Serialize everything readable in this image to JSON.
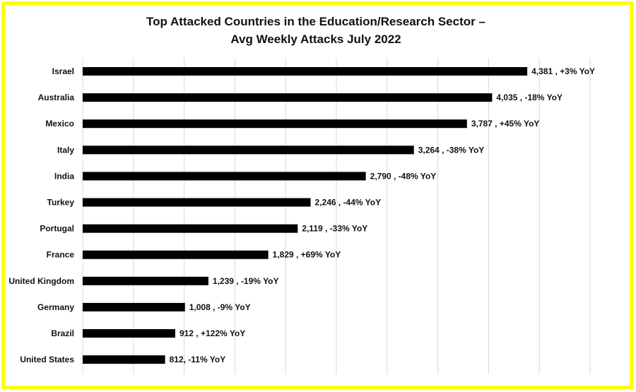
{
  "chart_data": {
    "type": "bar",
    "orientation": "horizontal",
    "title_line1": "Top Attacked Countries in the Education/Research Sector –",
    "title_line2": "Avg Weekly Attacks July 2022",
    "categories": [
      "Israel",
      "Australia",
      "Mexico",
      "Italy",
      "India",
      "Turkey",
      "Portugal",
      "France",
      "United Kingdom",
      "Germany",
      "Brazil",
      "United States"
    ],
    "values": [
      4381,
      4035,
      3787,
      3264,
      2790,
      2246,
      2119,
      1829,
      1239,
      1008,
      912,
      812
    ],
    "data_labels": [
      "4,381 , +3% YoY",
      "4,035 , -18% YoY",
      "3,787 , +45% YoY",
      "3,264 , -38% YoY",
      "2,790 , -48% YoY",
      "2,246 , -44% YoY",
      "2,119 , -33% YoY",
      "1,829 , +69% YoY",
      "1,239 , -19% YoY",
      "1,008 , -9% YoY",
      "912 , +122% YoY",
      "812, -11% YoY"
    ],
    "xlim": [
      0,
      5000
    ],
    "grid": true,
    "bar_color": "#000000",
    "border_color": "#ffff00"
  }
}
